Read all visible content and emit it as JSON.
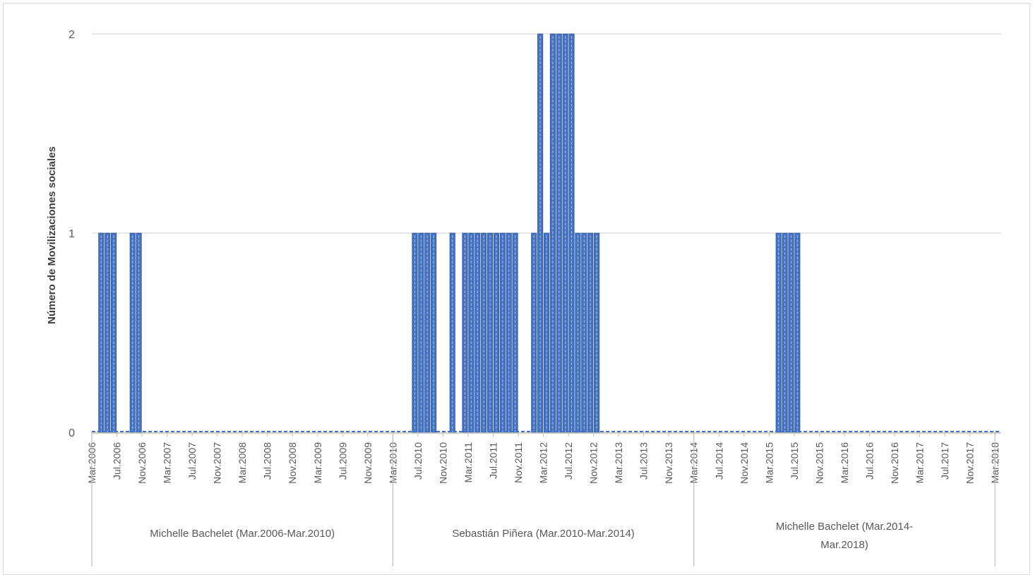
{
  "chart_data": {
    "type": "bar",
    "title": "",
    "xlabel": "",
    "ylabel": "Número de Movilizaciones sociales",
    "ylim": [
      0,
      2
    ],
    "yticks": [
      0,
      1,
      2
    ],
    "grid": true,
    "legend": "none",
    "colors": {
      "bar_fill": "#4472c4",
      "bar_stroke": "#2f5597",
      "bar_inner": "#9dc3e6",
      "grid": "#d9d9d9",
      "axis": "#bfbfbf"
    },
    "start": {
      "year": 2006,
      "month": 3
    },
    "months_count": 145,
    "tick_labels": [
      "Mar.2006",
      "Jul.2006",
      "Nov.2006",
      "Mar.2007",
      "Jul.2007",
      "Nov.2007",
      "Mar.2008",
      "Jul.2008",
      "Nov.2008",
      "Mar.2009",
      "Jul.2009",
      "Nov.2009",
      "Mar.2010",
      "Jul.2010",
      "Nov.2010",
      "Mar.2011",
      "Jul.2011",
      "Nov.2011",
      "Mar.2012",
      "Jul.2012",
      "Nov.2012",
      "Mar.2013",
      "Jul.2013",
      "Nov.2013",
      "Mar.2014",
      "Jul.2014",
      "Nov.2014",
      "Mar.2015",
      "Jul.2015",
      "Nov.2015",
      "Mar.2016",
      "Jul.2016",
      "Nov.2016",
      "Mar.2017",
      "Jul.2017",
      "Nov.2017",
      "Mar.2018"
    ],
    "groups": [
      {
        "label_lines": [
          "Michelle Bachelet (Mar.2006-Mar.2010)"
        ],
        "from": "Mar.2006",
        "to": "Mar.2010"
      },
      {
        "label_lines": [
          "Sebastián Piñera (Mar.2010-Mar.2014)"
        ],
        "from": "Mar.2010",
        "to": "Mar.2014"
      },
      {
        "label_lines": [
          "Michelle Bachelet (Mar.2014-",
          "Mar.2018)"
        ],
        "from": "Mar.2014",
        "to": "Mar.2018"
      }
    ],
    "bars": [
      {
        "month": "Apr.2006",
        "value": 1
      },
      {
        "month": "May.2006",
        "value": 1
      },
      {
        "month": "Jun.2006",
        "value": 1
      },
      {
        "month": "Sep.2006",
        "value": 1
      },
      {
        "month": "Oct.2006",
        "value": 1
      },
      {
        "month": "Jun.2010",
        "value": 1
      },
      {
        "month": "Jul.2010",
        "value": 1
      },
      {
        "month": "Aug.2010",
        "value": 1
      },
      {
        "month": "Sep.2010",
        "value": 1
      },
      {
        "month": "Dec.2010",
        "value": 1
      },
      {
        "month": "Feb.2011",
        "value": 1
      },
      {
        "month": "Mar.2011",
        "value": 1
      },
      {
        "month": "Apr.2011",
        "value": 1
      },
      {
        "month": "May.2011",
        "value": 1
      },
      {
        "month": "Jun.2011",
        "value": 1
      },
      {
        "month": "Jul.2011",
        "value": 1
      },
      {
        "month": "Aug.2011",
        "value": 1
      },
      {
        "month": "Sep.2011",
        "value": 1
      },
      {
        "month": "Oct.2011",
        "value": 1
      },
      {
        "month": "Jan.2012",
        "value": 1
      },
      {
        "month": "Feb.2012",
        "value": 2
      },
      {
        "month": "Mar.2012",
        "value": 1
      },
      {
        "month": "Apr.2012",
        "value": 2
      },
      {
        "month": "May.2012",
        "value": 2
      },
      {
        "month": "Jun.2012",
        "value": 2
      },
      {
        "month": "Jul.2012",
        "value": 2
      },
      {
        "month": "Aug.2012",
        "value": 1
      },
      {
        "month": "Sep.2012",
        "value": 1
      },
      {
        "month": "Oct.2012",
        "value": 1
      },
      {
        "month": "Nov.2012",
        "value": 1
      },
      {
        "month": "Apr.2015",
        "value": 1
      },
      {
        "month": "May.2015",
        "value": 1
      },
      {
        "month": "Jun.2015",
        "value": 1
      },
      {
        "month": "Jul.2015",
        "value": 1
      }
    ]
  }
}
